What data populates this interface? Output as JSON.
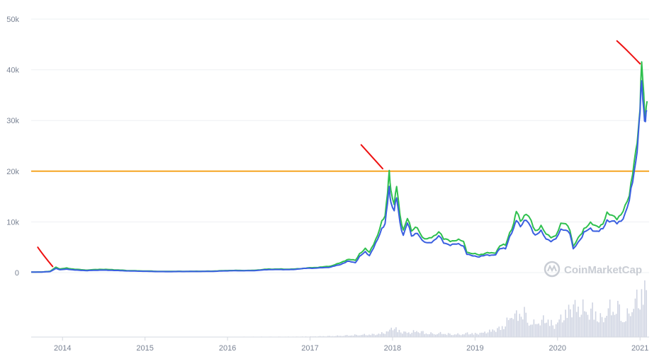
{
  "chart_data": {
    "type": "line",
    "watermark": "CoinMarketCap",
    "grid": true,
    "ylim": [
      0,
      50000
    ],
    "y_ticks": [
      {
        "value": 0,
        "label": "0"
      },
      {
        "value": 10000,
        "label": "10k"
      },
      {
        "value": 20000,
        "label": "20k"
      },
      {
        "value": 30000,
        "label": "30k"
      },
      {
        "value": 40000,
        "label": "40k"
      },
      {
        "value": 50000,
        "label": "50k"
      }
    ],
    "xlim": [
      2013.62,
      2021.11
    ],
    "x_ticks": [
      {
        "value": 2014,
        "label": "2014"
      },
      {
        "value": 2015,
        "label": "2015"
      },
      {
        "value": 2016,
        "label": "2016"
      },
      {
        "value": 2017,
        "label": "2017"
      },
      {
        "value": 2018,
        "label": "2018"
      },
      {
        "value": 2019,
        "label": "2019"
      },
      {
        "value": 2020,
        "label": "2020"
      },
      {
        "value": 2021,
        "label": "2021"
      }
    ],
    "colors": {
      "green": "#2fc04e",
      "blue": "#3a5fe0",
      "reference": "#f5a623",
      "annotation": "#ee1111",
      "volume": "#cfd4e2",
      "grid": "#eef0f3",
      "axis": "#d5d9e0",
      "tick": "#7a8394"
    },
    "reference_line": {
      "y": 20000
    },
    "series": [
      {
        "color": "#2fc04e",
        "points": [
          [
            2013.62,
            100
          ],
          [
            2013.75,
            130
          ],
          [
            2013.85,
            250
          ],
          [
            2013.92,
            1100
          ],
          [
            2013.97,
            700
          ],
          [
            2014.05,
            900
          ],
          [
            2014.15,
            650
          ],
          [
            2014.3,
            500
          ],
          [
            2014.45,
            650
          ],
          [
            2014.6,
            580
          ],
          [
            2014.8,
            400
          ],
          [
            2015.0,
            320
          ],
          [
            2015.2,
            240
          ],
          [
            2015.5,
            260
          ],
          [
            2015.8,
            280
          ],
          [
            2016.0,
            420
          ],
          [
            2016.3,
            430
          ],
          [
            2016.5,
            700
          ],
          [
            2016.8,
            680
          ],
          [
            2017.0,
            950
          ],
          [
            2017.15,
            1100
          ],
          [
            2017.25,
            1300
          ],
          [
            2017.35,
            1800
          ],
          [
            2017.45,
            2600
          ],
          [
            2017.55,
            2400
          ],
          [
            2017.6,
            3800
          ],
          [
            2017.67,
            4600
          ],
          [
            2017.72,
            4000
          ],
          [
            2017.77,
            5800
          ],
          [
            2017.82,
            7300
          ],
          [
            2017.87,
            9800
          ],
          [
            2017.91,
            11500
          ],
          [
            2017.94,
            16200
          ],
          [
            2017.96,
            19400
          ],
          [
            2017.98,
            16000
          ],
          [
            2018.02,
            14000
          ],
          [
            2018.05,
            17000
          ],
          [
            2018.09,
            11000
          ],
          [
            2018.13,
            8500
          ],
          [
            2018.18,
            11000
          ],
          [
            2018.23,
            8000
          ],
          [
            2018.3,
            9200
          ],
          [
            2018.36,
            7000
          ],
          [
            2018.42,
            6400
          ],
          [
            2018.5,
            7300
          ],
          [
            2018.56,
            8200
          ],
          [
            2018.62,
            6500
          ],
          [
            2018.7,
            6400
          ],
          [
            2018.8,
            6300
          ],
          [
            2018.86,
            6200
          ],
          [
            2018.9,
            4200
          ],
          [
            2018.95,
            3700
          ],
          [
            2019.05,
            3600
          ],
          [
            2019.15,
            3800
          ],
          [
            2019.25,
            4000
          ],
          [
            2019.3,
            5200
          ],
          [
            2019.37,
            5500
          ],
          [
            2019.42,
            8000
          ],
          [
            2019.47,
            9500
          ],
          [
            2019.5,
            12000
          ],
          [
            2019.55,
            10500
          ],
          [
            2019.62,
            11500
          ],
          [
            2019.68,
            10000
          ],
          [
            2019.73,
            8400
          ],
          [
            2019.8,
            9000
          ],
          [
            2019.86,
            7500
          ],
          [
            2019.92,
            7200
          ],
          [
            2019.98,
            7300
          ],
          [
            2020.04,
            9300
          ],
          [
            2020.1,
            9800
          ],
          [
            2020.15,
            8700
          ],
          [
            2020.19,
            5000
          ],
          [
            2020.25,
            6700
          ],
          [
            2020.32,
            8800
          ],
          [
            2020.4,
            9500
          ],
          [
            2020.48,
            9300
          ],
          [
            2020.55,
            9400
          ],
          [
            2020.6,
            11500
          ],
          [
            2020.66,
            11700
          ],
          [
            2020.72,
            10700
          ],
          [
            2020.77,
            11000
          ],
          [
            2020.82,
            13200
          ],
          [
            2020.87,
            15800
          ],
          [
            2020.91,
            19200
          ],
          [
            2020.95,
            23500
          ],
          [
            2020.98,
            29000
          ],
          [
            2021.0,
            33000
          ],
          [
            2021.02,
            40600
          ],
          [
            2021.045,
            35000
          ],
          [
            2021.065,
            31000
          ],
          [
            2021.085,
            33800
          ]
        ]
      },
      {
        "color": "#3a5fe0",
        "points": [
          [
            2013.62,
            100
          ],
          [
            2013.75,
            120
          ],
          [
            2013.85,
            200
          ],
          [
            2013.92,
            850
          ],
          [
            2013.97,
            550
          ],
          [
            2014.05,
            700
          ],
          [
            2014.15,
            500
          ],
          [
            2014.3,
            400
          ],
          [
            2014.45,
            500
          ],
          [
            2014.6,
            450
          ],
          [
            2014.8,
            330
          ],
          [
            2015.0,
            260
          ],
          [
            2015.2,
            200
          ],
          [
            2015.5,
            220
          ],
          [
            2015.8,
            240
          ],
          [
            2016.0,
            360
          ],
          [
            2016.3,
            380
          ],
          [
            2016.5,
            600
          ],
          [
            2016.8,
            600
          ],
          [
            2016.9,
            800
          ],
          [
            2017.15,
            950
          ],
          [
            2017.25,
            1100
          ],
          [
            2017.35,
            1500
          ],
          [
            2017.45,
            2200
          ],
          [
            2017.55,
            2000
          ],
          [
            2017.6,
            3200
          ],
          [
            2017.67,
            4000
          ],
          [
            2017.72,
            3400
          ],
          [
            2017.77,
            5000
          ],
          [
            2017.82,
            6400
          ],
          [
            2017.87,
            8600
          ],
          [
            2017.91,
            10000
          ],
          [
            2017.94,
            13800
          ],
          [
            2017.96,
            16500
          ],
          [
            2017.98,
            14000
          ],
          [
            2018.02,
            12500
          ],
          [
            2018.05,
            14500
          ],
          [
            2018.09,
            9800
          ],
          [
            2018.13,
            7500
          ],
          [
            2018.18,
            9800
          ],
          [
            2018.23,
            7100
          ],
          [
            2018.3,
            8100
          ],
          [
            2018.36,
            6200
          ],
          [
            2018.42,
            5700
          ],
          [
            2018.5,
            6400
          ],
          [
            2018.56,
            7200
          ],
          [
            2018.62,
            5800
          ],
          [
            2018.7,
            5600
          ],
          [
            2018.8,
            5500
          ],
          [
            2018.86,
            5400
          ],
          [
            2018.9,
            3700
          ],
          [
            2018.95,
            3300
          ],
          [
            2019.05,
            3200
          ],
          [
            2019.15,
            3400
          ],
          [
            2019.25,
            3600
          ],
          [
            2019.3,
            4600
          ],
          [
            2019.37,
            4900
          ],
          [
            2019.42,
            7100
          ],
          [
            2019.47,
            8500
          ],
          [
            2019.5,
            10500
          ],
          [
            2019.55,
            9400
          ],
          [
            2019.62,
            10200
          ],
          [
            2019.68,
            8900
          ],
          [
            2019.73,
            7500
          ],
          [
            2019.8,
            8000
          ],
          [
            2019.86,
            6700
          ],
          [
            2019.92,
            6400
          ],
          [
            2019.98,
            6500
          ],
          [
            2020.04,
            8300
          ],
          [
            2020.1,
            8700
          ],
          [
            2020.15,
            7800
          ],
          [
            2020.19,
            4500
          ],
          [
            2020.25,
            6000
          ],
          [
            2020.32,
            7900
          ],
          [
            2020.4,
            8500
          ],
          [
            2020.48,
            8300
          ],
          [
            2020.55,
            8400
          ],
          [
            2020.6,
            10300
          ],
          [
            2020.66,
            10500
          ],
          [
            2020.72,
            9600
          ],
          [
            2020.77,
            9900
          ],
          [
            2020.82,
            11900
          ],
          [
            2020.87,
            14500
          ],
          [
            2020.91,
            17500
          ],
          [
            2020.95,
            22000
          ],
          [
            2020.98,
            28000
          ],
          [
            2021.0,
            31500
          ],
          [
            2021.02,
            37500
          ],
          [
            2021.045,
            32500
          ],
          [
            2021.065,
            29800
          ],
          [
            2021.085,
            31800
          ]
        ]
      }
    ],
    "annotations": [
      {
        "x_start": 2013.7,
        "y_start": 5000,
        "x_end": 2013.88,
        "y_end": 1200
      },
      {
        "x_start": 2017.62,
        "y_start": 25200,
        "x_end": 2017.88,
        "y_end": 20500
      },
      {
        "x_start": 2020.72,
        "y_start": 45700,
        "x_end": 2021.0,
        "y_end": 41200
      }
    ],
    "volume": {
      "max": 100,
      "points": [
        [
          2013.62,
          0.3
        ],
        [
          2015.0,
          0.3
        ],
        [
          2016.0,
          0.5
        ],
        [
          2016.8,
          0.7
        ],
        [
          2017.0,
          1
        ],
        [
          2017.3,
          2
        ],
        [
          2017.6,
          4
        ],
        [
          2017.8,
          5
        ],
        [
          2017.9,
          8
        ],
        [
          2017.95,
          11
        ],
        [
          2018.0,
          18
        ],
        [
          2018.05,
          13
        ],
        [
          2018.1,
          9
        ],
        [
          2018.2,
          8
        ],
        [
          2018.3,
          11
        ],
        [
          2018.4,
          7
        ],
        [
          2018.5,
          6
        ],
        [
          2018.6,
          7
        ],
        [
          2018.7,
          5
        ],
        [
          2018.85,
          5
        ],
        [
          2018.9,
          7
        ],
        [
          2019.0,
          6
        ],
        [
          2019.1,
          8
        ],
        [
          2019.2,
          12
        ],
        [
          2019.3,
          16
        ],
        [
          2019.35,
          22
        ],
        [
          2019.4,
          30
        ],
        [
          2019.45,
          45
        ],
        [
          2019.5,
          35
        ],
        [
          2019.55,
          50
        ],
        [
          2019.6,
          40
        ],
        [
          2019.65,
          28
        ],
        [
          2019.7,
          22
        ],
        [
          2019.75,
          30
        ],
        [
          2019.8,
          25
        ],
        [
          2019.85,
          40
        ],
        [
          2019.9,
          25
        ],
        [
          2019.95,
          20
        ],
        [
          2020.0,
          28
        ],
        [
          2020.05,
          35
        ],
        [
          2020.1,
          45
        ],
        [
          2020.15,
          50
        ],
        [
          2020.2,
          60
        ],
        [
          2020.25,
          45
        ],
        [
          2020.3,
          55
        ],
        [
          2020.35,
          40
        ],
        [
          2020.4,
          50
        ],
        [
          2020.45,
          45
        ],
        [
          2020.5,
          35
        ],
        [
          2020.55,
          30
        ],
        [
          2020.6,
          55
        ],
        [
          2020.65,
          45
        ],
        [
          2020.7,
          60
        ],
        [
          2020.75,
          45
        ],
        [
          2020.8,
          30
        ],
        [
          2020.85,
          40
        ],
        [
          2020.9,
          55
        ],
        [
          2020.95,
          65
        ],
        [
          2021.0,
          75
        ],
        [
          2021.02,
          90
        ],
        [
          2021.05,
          82
        ],
        [
          2021.08,
          78
        ]
      ]
    }
  }
}
